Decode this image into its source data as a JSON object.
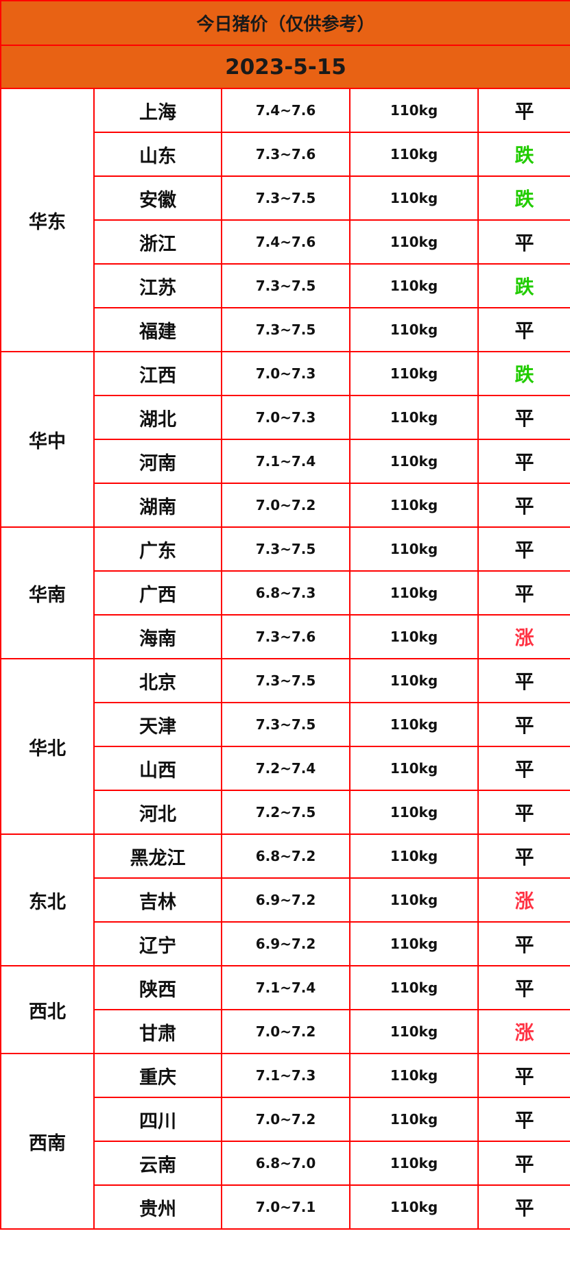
{
  "title": "今日猪价（仅供参考）",
  "date": "2023-5-15",
  "colors": {
    "header_bg": "#e86214",
    "border": "#ff0000",
    "down": "#22cc00",
    "up": "#ff3344",
    "flat": "#111111"
  },
  "regions": [
    {
      "name": "华东",
      "rows": [
        {
          "province": "上海",
          "price": "7.4~7.6",
          "weight": "110kg",
          "trend": "平"
        },
        {
          "province": "山东",
          "price": "7.3~7.6",
          "weight": "110kg",
          "trend": "跌"
        },
        {
          "province": "安徽",
          "price": "7.3~7.5",
          "weight": "110kg",
          "trend": "跌"
        },
        {
          "province": "浙江",
          "price": "7.4~7.6",
          "weight": "110kg",
          "trend": "平"
        },
        {
          "province": "江苏",
          "price": "7.3~7.5",
          "weight": "110kg",
          "trend": "跌"
        },
        {
          "province": "福建",
          "price": "7.3~7.5",
          "weight": "110kg",
          "trend": "平"
        }
      ]
    },
    {
      "name": "华中",
      "rows": [
        {
          "province": "江西",
          "price": "7.0~7.3",
          "weight": "110kg",
          "trend": "跌"
        },
        {
          "province": "湖北",
          "price": "7.0~7.3",
          "weight": "110kg",
          "trend": "平"
        },
        {
          "province": "河南",
          "price": "7.1~7.4",
          "weight": "110kg",
          "trend": "平"
        },
        {
          "province": "湖南",
          "price": "7.0~7.2",
          "weight": "110kg",
          "trend": "平"
        }
      ]
    },
    {
      "name": "华南",
      "rows": [
        {
          "province": "广东",
          "price": "7.3~7.5",
          "weight": "110kg",
          "trend": "平"
        },
        {
          "province": "广西",
          "price": "6.8~7.3",
          "weight": "110kg",
          "trend": "平"
        },
        {
          "province": "海南",
          "price": "7.3~7.6",
          "weight": "110kg",
          "trend": "涨"
        }
      ]
    },
    {
      "name": "华北",
      "rows": [
        {
          "province": "北京",
          "price": "7.3~7.5",
          "weight": "110kg",
          "trend": "平"
        },
        {
          "province": "天津",
          "price": "7.3~7.5",
          "weight": "110kg",
          "trend": "平"
        },
        {
          "province": "山西",
          "price": "7.2~7.4",
          "weight": "110kg",
          "trend": "平"
        },
        {
          "province": "河北",
          "price": "7.2~7.5",
          "weight": "110kg",
          "trend": "平"
        }
      ]
    },
    {
      "name": "东北",
      "rows": [
        {
          "province": "黑龙江",
          "price": "6.8~7.2",
          "weight": "110kg",
          "trend": "平"
        },
        {
          "province": "吉林",
          "price": "6.9~7.2",
          "weight": "110kg",
          "trend": "涨"
        },
        {
          "province": "辽宁",
          "price": "6.9~7.2",
          "weight": "110kg",
          "trend": "平"
        }
      ]
    },
    {
      "name": "西北",
      "rows": [
        {
          "province": "陕西",
          "price": "7.1~7.4",
          "weight": "110kg",
          "trend": "平"
        },
        {
          "province": "甘肃",
          "price": "7.0~7.2",
          "weight": "110kg",
          "trend": "涨"
        }
      ]
    },
    {
      "name": "西南",
      "rows": [
        {
          "province": "重庆",
          "price": "7.1~7.3",
          "weight": "110kg",
          "trend": "平"
        },
        {
          "province": "四川",
          "price": "7.0~7.2",
          "weight": "110kg",
          "trend": "平"
        },
        {
          "province": "云南",
          "price": "6.8~7.0",
          "weight": "110kg",
          "trend": "平"
        },
        {
          "province": "贵州",
          "price": "7.0~7.1",
          "weight": "110kg",
          "trend": "平"
        }
      ]
    }
  ]
}
